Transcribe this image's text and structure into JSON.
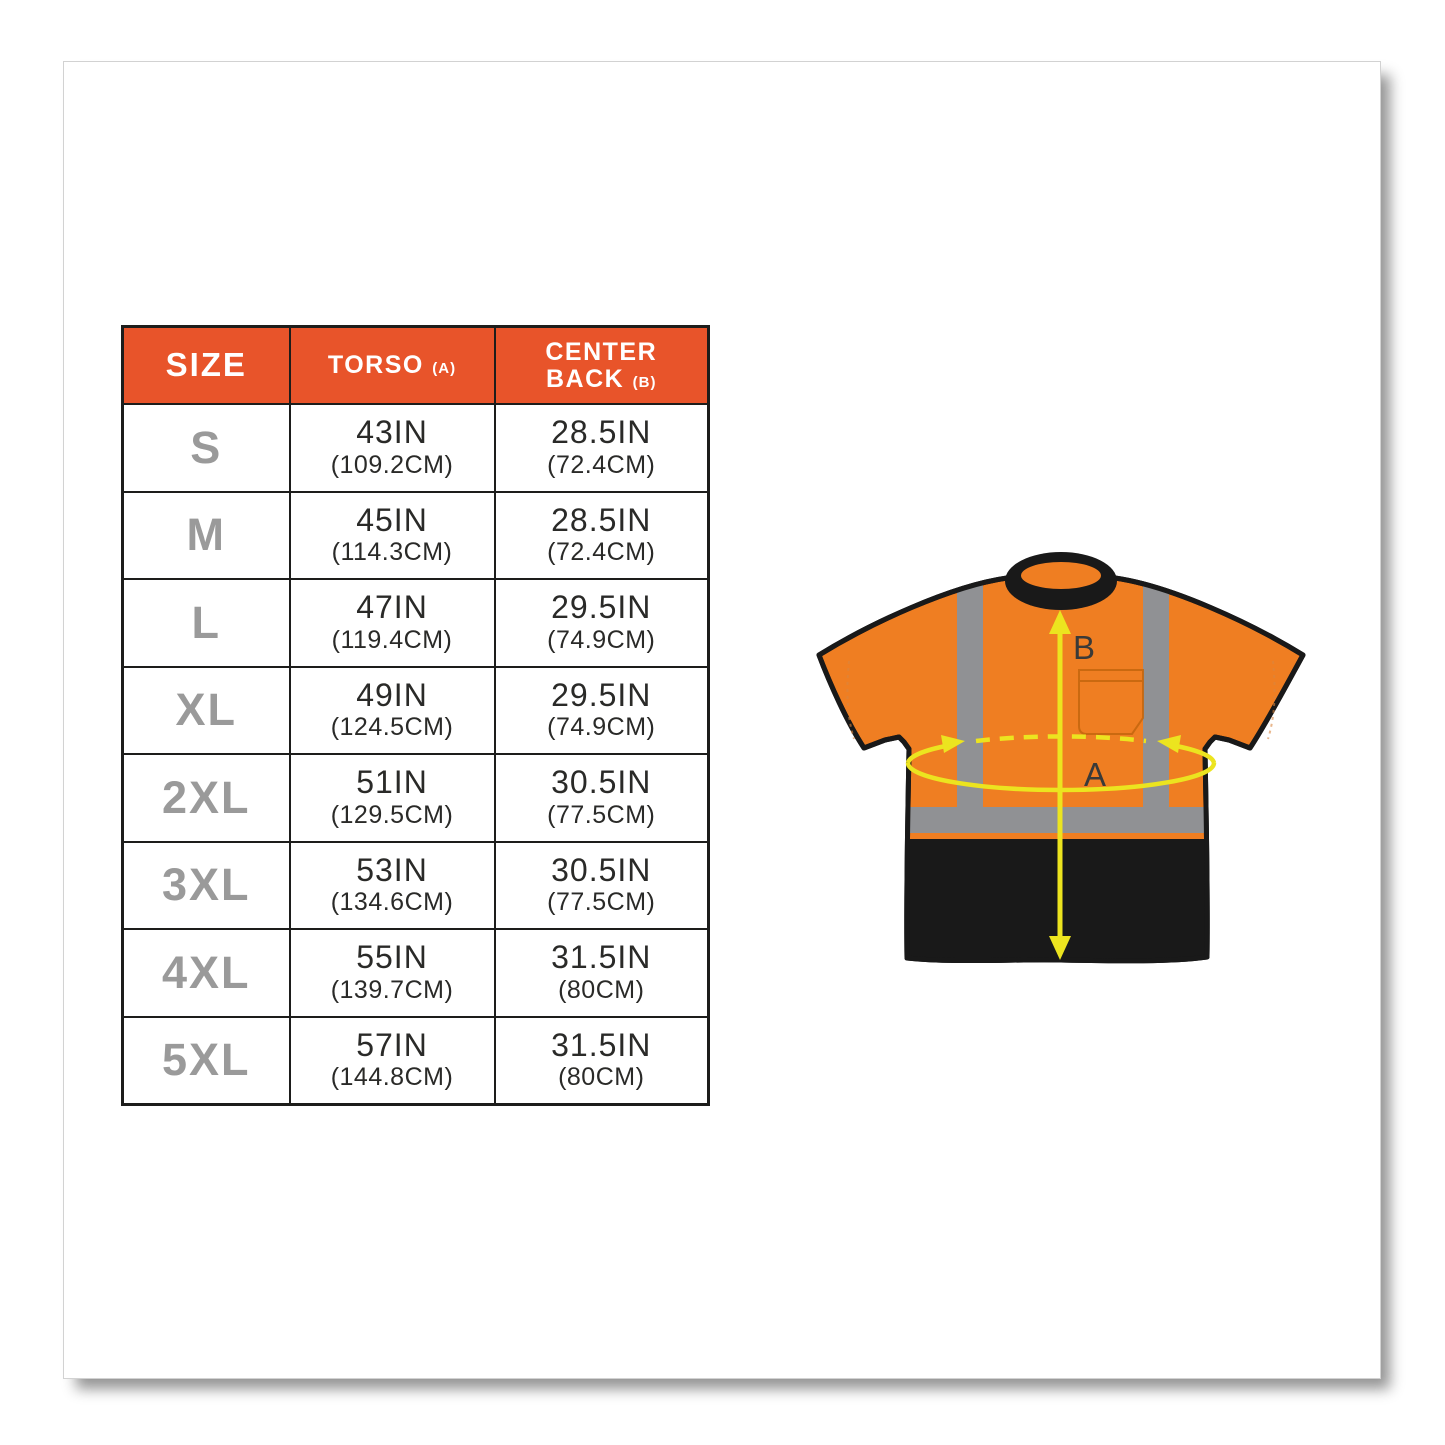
{
  "size_chart": {
    "header": {
      "size": "SIZE",
      "torso": "TORSO",
      "torso_suffix": "(A)",
      "back_line1": "CENTER",
      "back_line2": "BACK",
      "back_suffix": "(B)"
    },
    "rows": [
      {
        "size": "S",
        "torso_in": "43IN",
        "torso_cm": "(109.2CM)",
        "back_in": "28.5IN",
        "back_cm": "(72.4CM)"
      },
      {
        "size": "M",
        "torso_in": "45IN",
        "torso_cm": "(114.3CM)",
        "back_in": "28.5IN",
        "back_cm": "(72.4CM)"
      },
      {
        "size": "L",
        "torso_in": "47IN",
        "torso_cm": "(119.4CM)",
        "back_in": "29.5IN",
        "back_cm": "(74.9CM)"
      },
      {
        "size": "XL",
        "torso_in": "49IN",
        "torso_cm": "(124.5CM)",
        "back_in": "29.5IN",
        "back_cm": "(74.9CM)"
      },
      {
        "size": "2XL",
        "torso_in": "51IN",
        "torso_cm": "(129.5CM)",
        "back_in": "30.5IN",
        "back_cm": "(77.5CM)"
      },
      {
        "size": "3XL",
        "torso_in": "53IN",
        "torso_cm": "(134.6CM)",
        "back_in": "30.5IN",
        "back_cm": "(77.5CM)"
      },
      {
        "size": "4XL",
        "torso_in": "55IN",
        "torso_cm": "(139.7CM)",
        "back_in": "31.5IN",
        "back_cm": "(80CM)"
      },
      {
        "size": "5XL",
        "torso_in": "57IN",
        "torso_cm": "(144.8CM)",
        "back_in": "31.5IN",
        "back_cm": "(80CM)"
      }
    ]
  },
  "diagram": {
    "label_a": "A",
    "label_b": "B"
  },
  "colors": {
    "header_orange": "#e8542a",
    "shirt_orange": "#ef7e22",
    "stripe_gray": "#909194",
    "shirt_black": "#191919",
    "arrow_yellow": "#ece41f",
    "size_text_gray": "#9a9a9a",
    "table_border": "#1d1d1b",
    "data_text": "#2a2a28",
    "label_text": "#3a3a38",
    "pocket_line": "#c4660e"
  }
}
